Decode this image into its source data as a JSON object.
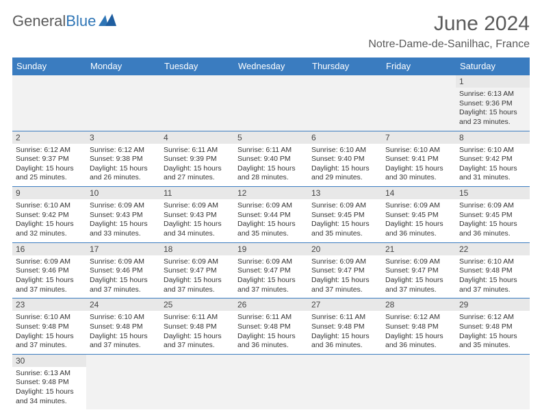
{
  "logo": {
    "text1": "General",
    "text2": "Blue"
  },
  "title": "June 2024",
  "location": "Notre-Dame-de-Sanilhac, France",
  "colors": {
    "header_bg": "#3a7cc0",
    "header_fg": "#ffffff",
    "cell_border": "#3a7cc0",
    "alt_row_bg": "#f2f2f2",
    "dayhead_bg": "#e8e8e8",
    "text": "#333333",
    "title_color": "#5a5a5a",
    "logo_blue": "#2e75b6"
  },
  "day_names": [
    "Sunday",
    "Monday",
    "Tuesday",
    "Wednesday",
    "Thursday",
    "Friday",
    "Saturday"
  ],
  "weeks": [
    [
      null,
      null,
      null,
      null,
      null,
      null,
      {
        "n": "1",
        "sr": "Sunrise: 6:13 AM",
        "ss": "Sunset: 9:36 PM",
        "dl": "Daylight: 15 hours and 23 minutes."
      }
    ],
    [
      {
        "n": "2",
        "sr": "Sunrise: 6:12 AM",
        "ss": "Sunset: 9:37 PM",
        "dl": "Daylight: 15 hours and 25 minutes."
      },
      {
        "n": "3",
        "sr": "Sunrise: 6:12 AM",
        "ss": "Sunset: 9:38 PM",
        "dl": "Daylight: 15 hours and 26 minutes."
      },
      {
        "n": "4",
        "sr": "Sunrise: 6:11 AM",
        "ss": "Sunset: 9:39 PM",
        "dl": "Daylight: 15 hours and 27 minutes."
      },
      {
        "n": "5",
        "sr": "Sunrise: 6:11 AM",
        "ss": "Sunset: 9:40 PM",
        "dl": "Daylight: 15 hours and 28 minutes."
      },
      {
        "n": "6",
        "sr": "Sunrise: 6:10 AM",
        "ss": "Sunset: 9:40 PM",
        "dl": "Daylight: 15 hours and 29 minutes."
      },
      {
        "n": "7",
        "sr": "Sunrise: 6:10 AM",
        "ss": "Sunset: 9:41 PM",
        "dl": "Daylight: 15 hours and 30 minutes."
      },
      {
        "n": "8",
        "sr": "Sunrise: 6:10 AM",
        "ss": "Sunset: 9:42 PM",
        "dl": "Daylight: 15 hours and 31 minutes."
      }
    ],
    [
      {
        "n": "9",
        "sr": "Sunrise: 6:10 AM",
        "ss": "Sunset: 9:42 PM",
        "dl": "Daylight: 15 hours and 32 minutes."
      },
      {
        "n": "10",
        "sr": "Sunrise: 6:09 AM",
        "ss": "Sunset: 9:43 PM",
        "dl": "Daylight: 15 hours and 33 minutes."
      },
      {
        "n": "11",
        "sr": "Sunrise: 6:09 AM",
        "ss": "Sunset: 9:43 PM",
        "dl": "Daylight: 15 hours and 34 minutes."
      },
      {
        "n": "12",
        "sr": "Sunrise: 6:09 AM",
        "ss": "Sunset: 9:44 PM",
        "dl": "Daylight: 15 hours and 35 minutes."
      },
      {
        "n": "13",
        "sr": "Sunrise: 6:09 AM",
        "ss": "Sunset: 9:45 PM",
        "dl": "Daylight: 15 hours and 35 minutes."
      },
      {
        "n": "14",
        "sr": "Sunrise: 6:09 AM",
        "ss": "Sunset: 9:45 PM",
        "dl": "Daylight: 15 hours and 36 minutes."
      },
      {
        "n": "15",
        "sr": "Sunrise: 6:09 AM",
        "ss": "Sunset: 9:45 PM",
        "dl": "Daylight: 15 hours and 36 minutes."
      }
    ],
    [
      {
        "n": "16",
        "sr": "Sunrise: 6:09 AM",
        "ss": "Sunset: 9:46 PM",
        "dl": "Daylight: 15 hours and 37 minutes."
      },
      {
        "n": "17",
        "sr": "Sunrise: 6:09 AM",
        "ss": "Sunset: 9:46 PM",
        "dl": "Daylight: 15 hours and 37 minutes."
      },
      {
        "n": "18",
        "sr": "Sunrise: 6:09 AM",
        "ss": "Sunset: 9:47 PM",
        "dl": "Daylight: 15 hours and 37 minutes."
      },
      {
        "n": "19",
        "sr": "Sunrise: 6:09 AM",
        "ss": "Sunset: 9:47 PM",
        "dl": "Daylight: 15 hours and 37 minutes."
      },
      {
        "n": "20",
        "sr": "Sunrise: 6:09 AM",
        "ss": "Sunset: 9:47 PM",
        "dl": "Daylight: 15 hours and 37 minutes."
      },
      {
        "n": "21",
        "sr": "Sunrise: 6:09 AM",
        "ss": "Sunset: 9:47 PM",
        "dl": "Daylight: 15 hours and 37 minutes."
      },
      {
        "n": "22",
        "sr": "Sunrise: 6:10 AM",
        "ss": "Sunset: 9:48 PM",
        "dl": "Daylight: 15 hours and 37 minutes."
      }
    ],
    [
      {
        "n": "23",
        "sr": "Sunrise: 6:10 AM",
        "ss": "Sunset: 9:48 PM",
        "dl": "Daylight: 15 hours and 37 minutes."
      },
      {
        "n": "24",
        "sr": "Sunrise: 6:10 AM",
        "ss": "Sunset: 9:48 PM",
        "dl": "Daylight: 15 hours and 37 minutes."
      },
      {
        "n": "25",
        "sr": "Sunrise: 6:11 AM",
        "ss": "Sunset: 9:48 PM",
        "dl": "Daylight: 15 hours and 37 minutes."
      },
      {
        "n": "26",
        "sr": "Sunrise: 6:11 AM",
        "ss": "Sunset: 9:48 PM",
        "dl": "Daylight: 15 hours and 36 minutes."
      },
      {
        "n": "27",
        "sr": "Sunrise: 6:11 AM",
        "ss": "Sunset: 9:48 PM",
        "dl": "Daylight: 15 hours and 36 minutes."
      },
      {
        "n": "28",
        "sr": "Sunrise: 6:12 AM",
        "ss": "Sunset: 9:48 PM",
        "dl": "Daylight: 15 hours and 36 minutes."
      },
      {
        "n": "29",
        "sr": "Sunrise: 6:12 AM",
        "ss": "Sunset: 9:48 PM",
        "dl": "Daylight: 15 hours and 35 minutes."
      }
    ],
    [
      {
        "n": "30",
        "sr": "Sunrise: 6:13 AM",
        "ss": "Sunset: 9:48 PM",
        "dl": "Daylight: 15 hours and 34 minutes."
      },
      null,
      null,
      null,
      null,
      null,
      null
    ]
  ]
}
